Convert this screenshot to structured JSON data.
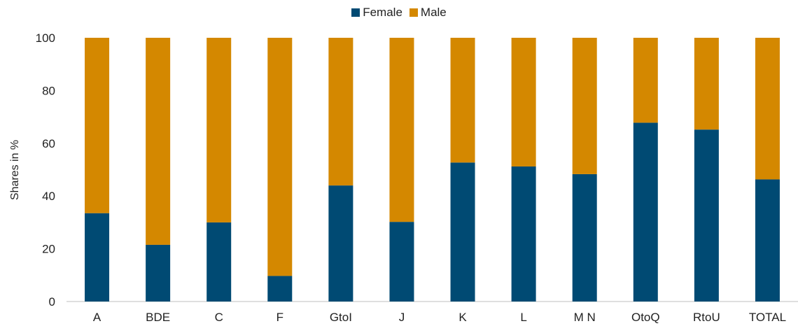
{
  "chart_data": {
    "type": "bar",
    "stacked": true,
    "categories": [
      "A",
      "BDE",
      "C",
      "F",
      "GtoI",
      "J",
      "K",
      "L",
      "M  N",
      "OtoQ",
      "RtoU",
      "TOTAL"
    ],
    "series": [
      {
        "name": "Female",
        "color": "#004a73",
        "values": [
          33.5,
          21.5,
          30,
          9.7,
          44,
          30.2,
          52.7,
          51.2,
          48.3,
          67.8,
          65.2,
          46.3
        ]
      },
      {
        "name": "Male",
        "color": "#d48800",
        "values": [
          66.5,
          78.5,
          70,
          90.3,
          56,
          69.8,
          47.3,
          48.8,
          51.7,
          32.2,
          34.8,
          53.7
        ]
      }
    ],
    "ylabel": "Shares in %",
    "ylim": [
      0,
      100
    ],
    "yticks": [
      0,
      20,
      40,
      60,
      80,
      100
    ],
    "grid": false,
    "legend": "top-center"
  }
}
